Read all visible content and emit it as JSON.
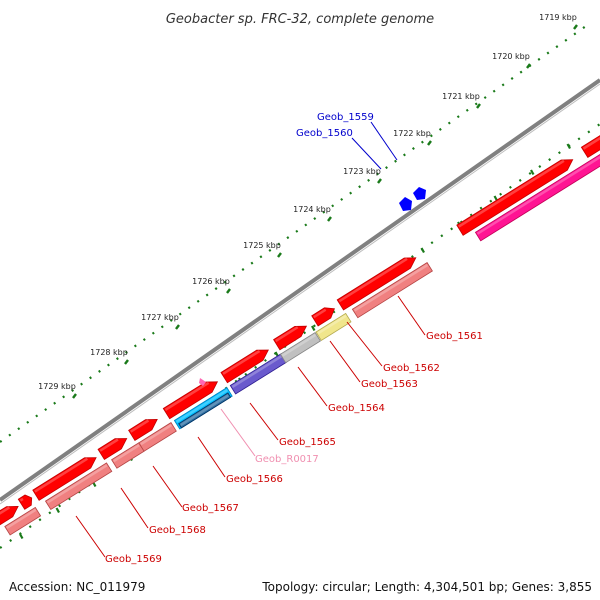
{
  "title": "Geobacter sp. FRC-32, complete genome",
  "kbp_ticks": [
    "1719 kbp",
    "1720 kbp",
    "1721 kbp",
    "1722 kbp",
    "1723 kbp",
    "1724 kbp",
    "1725 kbp",
    "1726 kbp",
    "1727 kbp",
    "1728 kbp",
    "1729 kbp"
  ],
  "gene_labels": [
    {
      "text": "Geob_1559",
      "color": "#0000cc"
    },
    {
      "text": "Geob_1560",
      "color": "#0000cc"
    },
    {
      "text": "Geob_1561",
      "color": "#cc0000"
    },
    {
      "text": "Geob_1562",
      "color": "#cc0000"
    },
    {
      "text": "Geob_1563",
      "color": "#cc0000"
    },
    {
      "text": "Geob_1564",
      "color": "#cc0000"
    },
    {
      "text": "Geob_1565",
      "color": "#cc0000"
    },
    {
      "text": "Geob_R0017",
      "color": "#f08fb0"
    },
    {
      "text": "Geob_1566",
      "color": "#cc0000"
    },
    {
      "text": "Geob_1567",
      "color": "#cc0000"
    },
    {
      "text": "Geob_1568",
      "color": "#cc0000"
    },
    {
      "text": "Geob_1569",
      "color": "#cc0000"
    }
  ],
  "colors": {
    "backbone": "#808080",
    "cds": "#ff0000",
    "cds_cog": "#f08080",
    "hypothetical": "#c0c0c0",
    "pale_yellow": "#f0e68c",
    "purple": "#6a5acd",
    "cyan": "#00bfff",
    "magenta": "#ff1493",
    "rna": "#ff69b4",
    "small_blue": "#0000ff",
    "lime": "#9acd32",
    "tick_green": "#1a7a1a"
  },
  "footer": {
    "accession": "Accession: NC_011979",
    "stats": "Topology: circular; Length: 4,304,501 bp; Genes: 3,855"
  }
}
